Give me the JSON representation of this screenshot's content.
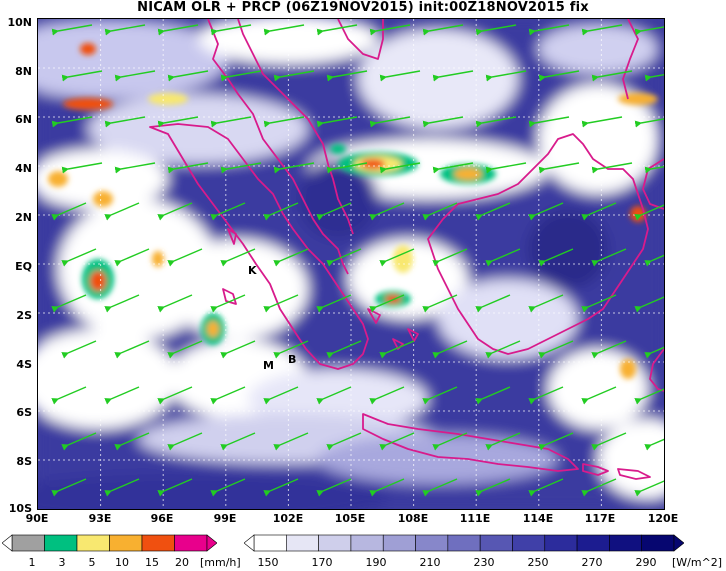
{
  "header": {
    "title": "NICAM OLR + PRCP (06Z19NOV2015) init:00Z18NOV2015 fix"
  },
  "map": {
    "lat_labels": [
      "10N",
      "8N",
      "6N",
      "4N",
      "2N",
      "EQ",
      "2S",
      "4S",
      "6S",
      "8S",
      "10S"
    ],
    "lon_labels": [
      "90E",
      "93E",
      "96E",
      "99E",
      "102E",
      "105E",
      "108E",
      "111E",
      "114E",
      "117E",
      "120E"
    ],
    "stations": [
      {
        "id": "K",
        "label": "K"
      },
      {
        "id": "M",
        "label": "M"
      },
      {
        "id": "B",
        "label": "B"
      }
    ],
    "colors": {
      "coast": "#d81b8c",
      "wind": "#22cc22",
      "grid": "#ffffff",
      "olr_deep": "#2a2a8f",
      "cloud": "#ffffff"
    }
  },
  "legend_precip": {
    "ticks": [
      "1",
      "3",
      "5",
      "10",
      "15",
      "20"
    ],
    "units": "[mm/h]",
    "colors": [
      "#a0a0a0",
      "#00c080",
      "#f8e870",
      "#f8b030",
      "#f05010",
      "#e8008c"
    ]
  },
  "legend_olr": {
    "ticks": [
      "150",
      "170",
      "190",
      "210",
      "230",
      "250",
      "270",
      "290"
    ],
    "units": "[W/m^2]",
    "colors": [
      "#ffffff",
      "#e6e6f5",
      "#cfcfeb",
      "#b7b7e0",
      "#9f9fd5",
      "#8787ca",
      "#6f6fbf",
      "#5757b3",
      "#4040a8",
      "#2c2c9c",
      "#1c1c90",
      "#101080",
      "#060670"
    ]
  }
}
